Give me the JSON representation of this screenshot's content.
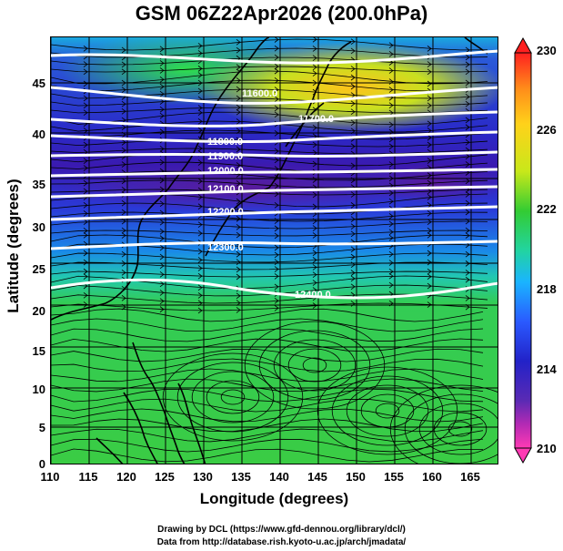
{
  "title": "GSM 06Z22Apr2026 (200.0hPa)",
  "xlabel": "Longitude (degrees)",
  "ylabel": "Latitude  (degrees)",
  "x_ticks": [
    "110",
    "115",
    "120",
    "125",
    "130",
    "135",
    "140",
    "145",
    "150",
    "155",
    "160",
    "165"
  ],
  "y_ticks": [
    "45",
    "40",
    "35",
    "30",
    "25",
    "20",
    "15",
    "10",
    "5",
    "0"
  ],
  "colorbar": {
    "ticks": [
      "230",
      "226",
      "222",
      "218",
      "214",
      "210"
    ],
    "colors": [
      "#ff2020",
      "#ff8c1a",
      "#ffd21a",
      "#c8e81a",
      "#33cc33",
      "#22d4a0",
      "#1ab4ff",
      "#2a5aff",
      "#2222c8",
      "#5a2ab4",
      "#b42ab4",
      "#ff3ab4"
    ]
  },
  "contours": [
    {
      "label": "11600.0"
    },
    {
      "label": "11700.0"
    },
    {
      "label": "11800.0"
    },
    {
      "label": "11900.0"
    },
    {
      "label": "12000.0"
    },
    {
      "label": "12100.0"
    },
    {
      "label": "12200.0"
    },
    {
      "label": "12300.0"
    },
    {
      "label": "12400.0"
    }
  ],
  "footer": {
    "line1": "Drawing by DCL (https://www.gfd-dennou.org/library/dcl/)",
    "line2": "Data from http://database.rish.kyoto-u.ac.jp/arch/jmadata/"
  }
}
